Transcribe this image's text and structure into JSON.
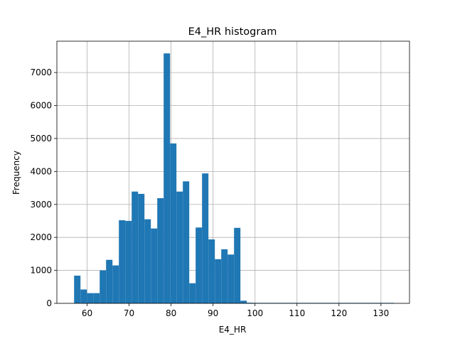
{
  "chart_data": {
    "type": "bar",
    "title": "E4_HR histogram",
    "xlabel": "E4_HR",
    "ylabel": "Frequency",
    "xlim": [
      52.8,
      136.8
    ],
    "ylim": [
      0,
      7950
    ],
    "grid": true,
    "bar_color": "#1f77b4",
    "x_ticks": [
      60,
      70,
      80,
      90,
      100,
      110,
      120,
      130
    ],
    "y_ticks": [
      0,
      1000,
      2000,
      3000,
      4000,
      5000,
      6000,
      7000
    ],
    "bin_start": 56.9,
    "bin_width": 1.524,
    "values": [
      840,
      420,
      310,
      310,
      1000,
      1320,
      1150,
      2520,
      2500,
      3390,
      3320,
      2550,
      2270,
      3190,
      7580,
      4850,
      3390,
      3700,
      610,
      2300,
      3940,
      1940,
      1340,
      1640,
      1480,
      2290,
      80,
      20,
      15,
      15,
      15,
      15,
      15,
      15,
      15,
      15,
      15,
      15,
      15,
      15,
      15,
      15,
      15,
      15,
      15,
      15,
      15,
      15,
      15,
      15
    ]
  }
}
